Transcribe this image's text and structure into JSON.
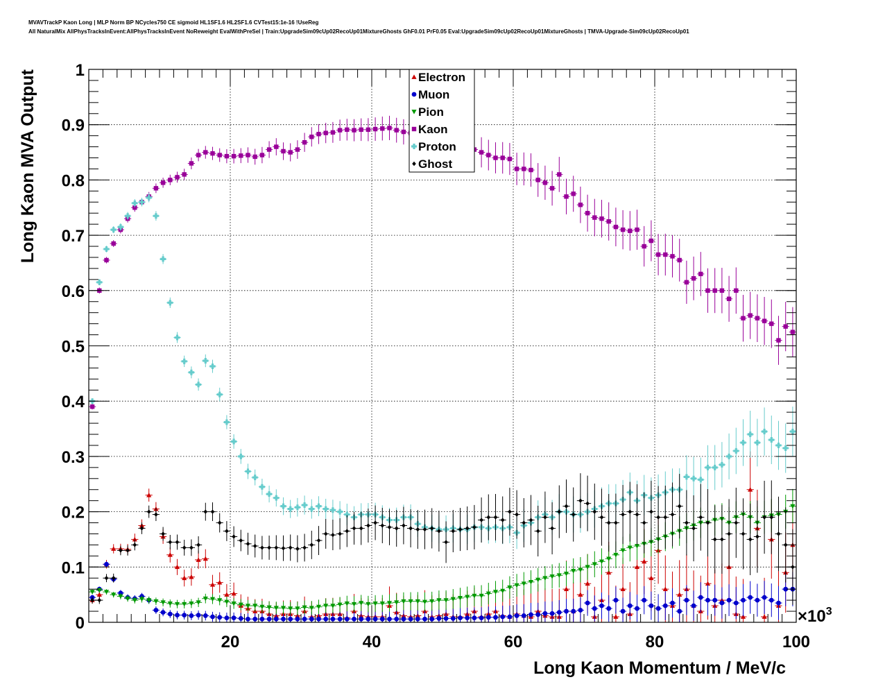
{
  "header": {
    "line1": "MVAVTrackP Kaon Long | MLP Norm BP NCycles750 CE sigmoid HL1SF1.6 HL2SF1.6 CVTest15:1e-16 !UseReg",
    "line2": "All NaturalMix AllPhysTracksInEvent:AllPhysTracksInEvent NoReweight EvalWithPreSel | Train:UpgradeSim09cUp02RecoUp01MixtureGhosts GhF0.01 PrF0.05 Eval:UpgradeSim09cUp02RecoUp01MixtureGhosts | TMVA-Upgrade-Sim09cUp02RecoUp01"
  },
  "chart_data": {
    "type": "scatter",
    "title": "",
    "xlabel": "Long Kaon Momentum / MeV/c",
    "ylabel": "Long Kaon MVA Output",
    "xlim": [
      0,
      100
    ],
    "ylim": [
      0,
      1
    ],
    "x_exponent_label": "×10",
    "x_exponent_power": "3",
    "x_ticks": [
      20,
      40,
      60,
      80,
      100
    ],
    "x_tick_labels": [
      "20",
      "40",
      "60",
      "80",
      "100"
    ],
    "y_ticks": [
      0,
      0.1,
      0.2,
      0.3,
      0.4,
      0.5,
      0.6,
      0.7,
      0.8,
      0.9,
      1
    ],
    "y_tick_labels": [
      "0",
      "0.1",
      "0.2",
      "0.3",
      "0.4",
      "0.5",
      "0.6",
      "0.7",
      "0.8",
      "0.9",
      "1"
    ],
    "grid": true,
    "legend_position": "top-center",
    "x_bins": [
      0.5,
      1.5,
      2.5,
      3.5,
      4.5,
      5.5,
      6.5,
      7.5,
      8.5,
      9.5,
      10.5,
      11.5,
      12.5,
      13.5,
      14.5,
      15.5,
      16.5,
      17.5,
      18.5,
      19.5,
      20.5,
      21.5,
      22.5,
      23.5,
      24.5,
      25.5,
      26.5,
      27.5,
      28.5,
      29.5,
      30.5,
      31.5,
      32.5,
      33.5,
      34.5,
      35.5,
      36.5,
      37.5,
      38.5,
      39.5,
      40.5,
      41.5,
      42.5,
      43.5,
      44.5,
      45.5,
      46.5,
      47.5,
      48.5,
      49.5,
      50.5,
      51.5,
      52.5,
      53.5,
      54.5,
      55.5,
      56.5,
      57.5,
      58.5,
      59.5,
      60.5,
      61.5,
      62.5,
      63.5,
      64.5,
      65.5,
      66.5,
      67.5,
      68.5,
      69.5,
      70.5,
      71.5,
      72.5,
      73.5,
      74.5,
      75.5,
      76.5,
      77.5,
      78.5,
      79.5,
      80.5,
      81.5,
      82.5,
      83.5,
      84.5,
      85.5,
      86.5,
      87.5,
      88.5,
      89.5,
      90.5,
      91.5,
      92.5,
      93.5,
      94.5,
      95.5,
      96.5,
      97.5,
      98.5,
      99.5
    ],
    "series": [
      {
        "name": "Electron",
        "color": "#cc0000",
        "marker": "triangle-up",
        "values": [
          0.04,
          0.05,
          0.105,
          0.133,
          0.133,
          0.132,
          0.15,
          0.175,
          0.23,
          0.205,
          0.155,
          0.122,
          0.1,
          0.08,
          0.082,
          0.113,
          0.115,
          0.068,
          0.072,
          0.05,
          0.052,
          0.03,
          0.025,
          0.02,
          0.02,
          0.015,
          0.012,
          0.015,
          0.015,
          0.012,
          0.02,
          0.01,
          0.012,
          0.015,
          0.015,
          0.015,
          0.008,
          0.02,
          0.012,
          0.01,
          0.01,
          0.01,
          0.03,
          0.018,
          0.012,
          0.01,
          0.012,
          0.02,
          0.01,
          0.012,
          0.015,
          0.01,
          0.01,
          0.015,
          0.02,
          0.01,
          0.015,
          0.02,
          0.012,
          0.01,
          0.015,
          0.012,
          0.01,
          0.02,
          0.012,
          0.01,
          0.01,
          0.06,
          0.02,
          0.05,
          0.07,
          0.01,
          0.04,
          0.09,
          0.01,
          0.06,
          0.015,
          0.1,
          0.11,
          0.08,
          0.13,
          0.06,
          0.03,
          0.05,
          0.06,
          0.03,
          0.02,
          0.07,
          0.03,
          0.04,
          0.1,
          0.015,
          0.01,
          0.24,
          0.17,
          0.01,
          0.15,
          0.03,
          0.09,
          0.14
        ]
      },
      {
        "name": "Muon",
        "color": "#0000cc",
        "marker": "circle",
        "values": [
          0.045,
          0.06,
          0.105,
          0.078,
          0.053,
          0.045,
          0.043,
          0.047,
          0.04,
          0.022,
          0.018,
          0.015,
          0.013,
          0.013,
          0.012,
          0.013,
          0.012,
          0.01,
          0.009,
          0.008,
          0.008,
          0.007,
          0.006,
          0.006,
          0.006,
          0.006,
          0.006,
          0.006,
          0.006,
          0.006,
          0.006,
          0.006,
          0.006,
          0.006,
          0.006,
          0.006,
          0.006,
          0.006,
          0.006,
          0.006,
          0.006,
          0.006,
          0.006,
          0.006,
          0.006,
          0.006,
          0.006,
          0.006,
          0.006,
          0.007,
          0.007,
          0.007,
          0.008,
          0.008,
          0.008,
          0.008,
          0.009,
          0.009,
          0.01,
          0.01,
          0.012,
          0.012,
          0.014,
          0.014,
          0.016,
          0.016,
          0.018,
          0.02,
          0.02,
          0.022,
          0.035,
          0.025,
          0.03,
          0.025,
          0.04,
          0.02,
          0.03,
          0.025,
          0.04,
          0.03,
          0.025,
          0.03,
          0.035,
          0.02,
          0.04,
          0.03,
          0.045,
          0.04,
          0.04,
          0.035,
          0.04,
          0.035,
          0.04,
          0.045,
          0.04,
          0.045,
          0.04,
          0.035,
          0.06,
          0.06
        ]
      },
      {
        "name": "Pion",
        "color": "#009900",
        "marker": "triangle-down",
        "values": [
          0.055,
          0.058,
          0.055,
          0.05,
          0.047,
          0.043,
          0.04,
          0.042,
          0.04,
          0.038,
          0.036,
          0.034,
          0.033,
          0.033,
          0.034,
          0.036,
          0.043,
          0.042,
          0.04,
          0.037,
          0.034,
          0.032,
          0.03,
          0.03,
          0.028,
          0.027,
          0.026,
          0.026,
          0.025,
          0.025,
          0.027,
          0.026,
          0.028,
          0.03,
          0.03,
          0.032,
          0.034,
          0.033,
          0.035,
          0.033,
          0.034,
          0.034,
          0.035,
          0.036,
          0.038,
          0.038,
          0.038,
          0.037,
          0.038,
          0.04,
          0.04,
          0.042,
          0.044,
          0.046,
          0.048,
          0.048,
          0.052,
          0.055,
          0.057,
          0.063,
          0.067,
          0.07,
          0.073,
          0.077,
          0.08,
          0.083,
          0.085,
          0.088,
          0.093,
          0.095,
          0.1,
          0.105,
          0.11,
          0.115,
          0.122,
          0.13,
          0.135,
          0.138,
          0.142,
          0.145,
          0.15,
          0.155,
          0.16,
          0.165,
          0.17,
          0.175,
          0.18,
          0.18,
          0.185,
          0.187,
          0.18,
          0.19,
          0.195,
          0.19,
          0.18,
          0.19,
          0.193,
          0.195,
          0.2,
          0.21
        ]
      },
      {
        "name": "Kaon",
        "color": "#990099",
        "marker": "square",
        "values": [
          0.39,
          0.6,
          0.655,
          0.685,
          0.71,
          0.73,
          0.75,
          0.76,
          0.77,
          0.785,
          0.795,
          0.8,
          0.805,
          0.81,
          0.83,
          0.845,
          0.85,
          0.848,
          0.845,
          0.843,
          0.843,
          0.844,
          0.845,
          0.842,
          0.845,
          0.855,
          0.86,
          0.852,
          0.85,
          0.855,
          0.868,
          0.878,
          0.883,
          0.885,
          0.886,
          0.89,
          0.891,
          0.89,
          0.891,
          0.891,
          0.892,
          0.893,
          0.894,
          0.89,
          0.887,
          0.885,
          0.884,
          0.882,
          0.88,
          0.877,
          0.873,
          0.87,
          0.863,
          0.858,
          0.855,
          0.85,
          0.845,
          0.84,
          0.84,
          0.838,
          0.82,
          0.82,
          0.818,
          0.8,
          0.795,
          0.785,
          0.81,
          0.77,
          0.775,
          0.755,
          0.74,
          0.732,
          0.73,
          0.725,
          0.715,
          0.71,
          0.708,
          0.71,
          0.68,
          0.69,
          0.665,
          0.665,
          0.662,
          0.655,
          0.615,
          0.622,
          0.63,
          0.6,
          0.6,
          0.6,
          0.585,
          0.6,
          0.55,
          0.555,
          0.55,
          0.545,
          0.54,
          0.51,
          0.535,
          0.525
        ]
      },
      {
        "name": "Proton",
        "color": "#66cccc",
        "marker": "cross",
        "values": [
          0.4,
          0.615,
          0.675,
          0.71,
          0.715,
          0.735,
          0.758,
          0.76,
          0.768,
          0.735,
          0.657,
          0.578,
          0.515,
          0.472,
          0.452,
          0.43,
          0.473,
          0.463,
          0.412,
          0.362,
          0.327,
          0.3,
          0.273,
          0.262,
          0.245,
          0.232,
          0.225,
          0.21,
          0.205,
          0.208,
          0.212,
          0.205,
          0.21,
          0.205,
          0.203,
          0.2,
          0.195,
          0.19,
          0.195,
          0.195,
          0.195,
          0.19,
          0.185,
          0.185,
          0.19,
          0.19,
          0.178,
          0.172,
          0.17,
          0.168,
          0.168,
          0.17,
          0.168,
          0.168,
          0.172,
          0.172,
          0.17,
          0.172,
          0.17,
          0.172,
          0.162,
          0.175,
          0.18,
          0.19,
          0.195,
          0.19,
          0.2,
          0.2,
          0.195,
          0.195,
          0.2,
          0.205,
          0.21,
          0.215,
          0.215,
          0.222,
          0.235,
          0.22,
          0.23,
          0.225,
          0.23,
          0.235,
          0.24,
          0.24,
          0.263,
          0.26,
          0.258,
          0.28,
          0.28,
          0.285,
          0.3,
          0.31,
          0.325,
          0.34,
          0.325,
          0.345,
          0.33,
          0.32,
          0.315,
          0.345
        ]
      },
      {
        "name": "Ghost",
        "color": "#000000",
        "marker": "diamond",
        "values": [
          0.04,
          0.04,
          0.08,
          0.08,
          0.13,
          0.13,
          0.14,
          0.17,
          0.2,
          0.195,
          0.16,
          0.145,
          0.145,
          0.135,
          0.135,
          0.14,
          0.2,
          0.2,
          0.18,
          0.165,
          0.155,
          0.148,
          0.142,
          0.138,
          0.135,
          0.135,
          0.135,
          0.134,
          0.135,
          0.133,
          0.135,
          0.14,
          0.148,
          0.16,
          0.158,
          0.16,
          0.165,
          0.17,
          0.17,
          0.175,
          0.18,
          0.175,
          0.172,
          0.17,
          0.175,
          0.17,
          0.168,
          0.168,
          0.17,
          0.165,
          0.145,
          0.165,
          0.168,
          0.17,
          0.172,
          0.185,
          0.19,
          0.19,
          0.185,
          0.2,
          0.195,
          0.18,
          0.185,
          0.165,
          0.19,
          0.17,
          0.2,
          0.21,
          0.195,
          0.22,
          0.215,
          0.2,
          0.19,
          0.18,
          0.18,
          0.195,
          0.2,
          0.195,
          0.18,
          0.2,
          0.19,
          0.19,
          0.195,
          0.21,
          0.18,
          0.17,
          0.19,
          0.18,
          0.15,
          0.15,
          0.16,
          0.18,
          0.16,
          0.15,
          0.155,
          0.19,
          0.19,
          0.16,
          0.14,
          0.1
        ]
      }
    ]
  }
}
